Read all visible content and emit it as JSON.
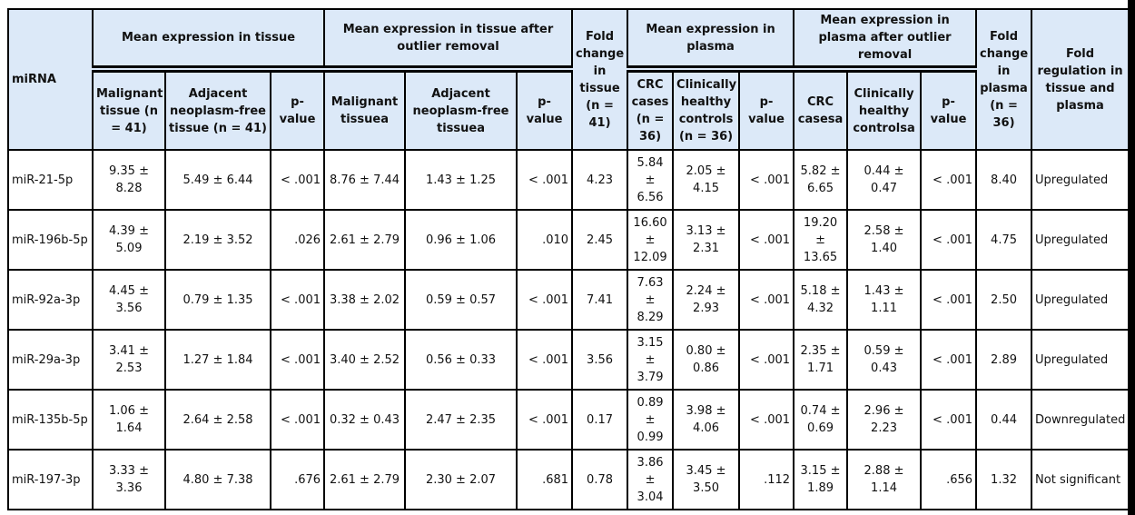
{
  "table": {
    "header": {
      "mirna": "miRNA",
      "groups": [
        "Mean expression in tissue",
        "Mean expression in tissue after outlier removal",
        "Fold change in tissue (n = 41)",
        "Mean expression in plasma",
        "Mean expression in plasma after outlier removal",
        "Fold change in plasma (n = 36)",
        "Fold regulation in tissue and plasma"
      ],
      "subheaders": [
        "Malignant tissue (n = 41)",
        "Adjacent neoplasm-free tissue (n = 41)",
        "p-value",
        "Malignant tissuea",
        "Adjacent neoplasm-free tissuea",
        "p-value",
        "CRC cases (n = 36)",
        "Clinically healthy controls (n = 36)",
        "p-value",
        "CRC casesa",
        "Clinically healthy controlsa",
        "p-value"
      ]
    },
    "rows": [
      [
        "miR-21-5p",
        "9.35 ± 8.28",
        "5.49 ± 6.44",
        "< .001",
        "8.76 ± 7.44",
        "1.43 ± 1.25",
        "< .001",
        "4.23",
        "5.84 ± 6.56",
        "2.05 ± 4.15",
        "< .001",
        "5.82 ± 6.65",
        "0.44 ± 0.47",
        "< .001",
        "8.40",
        "Upregulated"
      ],
      [
        "miR-196b-5p",
        "4.39 ± 5.09",
        "2.19 ± 3.52",
        ".026",
        "2.61 ± 2.79",
        "0.96 ± 1.06",
        ".010",
        "2.45",
        "16.60 ± 12.09",
        "3.13 ± 2.31",
        "< .001",
        "19.20 ± 13.65",
        "2.58 ± 1.40",
        "< .001",
        "4.75",
        "Upregulated"
      ],
      [
        "miR-92a-3p",
        "4.45 ± 3.56",
        "0.79 ± 1.35",
        "< .001",
        "3.38 ± 2.02",
        "0.59 ± 0.57",
        "< .001",
        "7.41",
        "7.63 ± 8.29",
        "2.24 ± 2.93",
        "< .001",
        "5.18 ± 4.32",
        "1.43 ± 1.11",
        "< .001",
        "2.50",
        "Upregulated"
      ],
      [
        "miR-29a-3p",
        "3.41 ± 2.53",
        "1.27 ± 1.84",
        "< .001",
        "3.40 ± 2.52",
        "0.56 ± 0.33",
        "< .001",
        "3.56",
        "3.15 ± 3.79",
        "0.80 ± 0.86",
        "< .001",
        "2.35 ± 1.71",
        "0.59 ± 0.43",
        "< .001",
        "2.89",
        "Upregulated"
      ],
      [
        "miR-135b-5p",
        "1.06 ± 1.64",
        "2.64 ± 2.58",
        "< .001",
        "0.32 ± 0.43",
        "2.47 ± 2.35",
        "< .001",
        "0.17",
        "0.89 ± 0.99",
        "3.98 ± 4.06",
        "< .001",
        "0.74 ± 0.69",
        "2.96 ± 2.23",
        "< .001",
        "0.44",
        "Downregulated"
      ],
      [
        "miR-197-3p",
        "3.33 ± 3.36",
        "4.80 ± 7.38",
        ".676",
        "2.61 ± 2.79",
        "2.30 ± 2.07",
        ".681",
        "0.78",
        "3.86 ± 3.04",
        "3.45 ± 3.50",
        ".112",
        "3.15 ± 1.89",
        "2.88 ± 1.14",
        ".656",
        "1.32",
        "Not significant"
      ]
    ]
  }
}
